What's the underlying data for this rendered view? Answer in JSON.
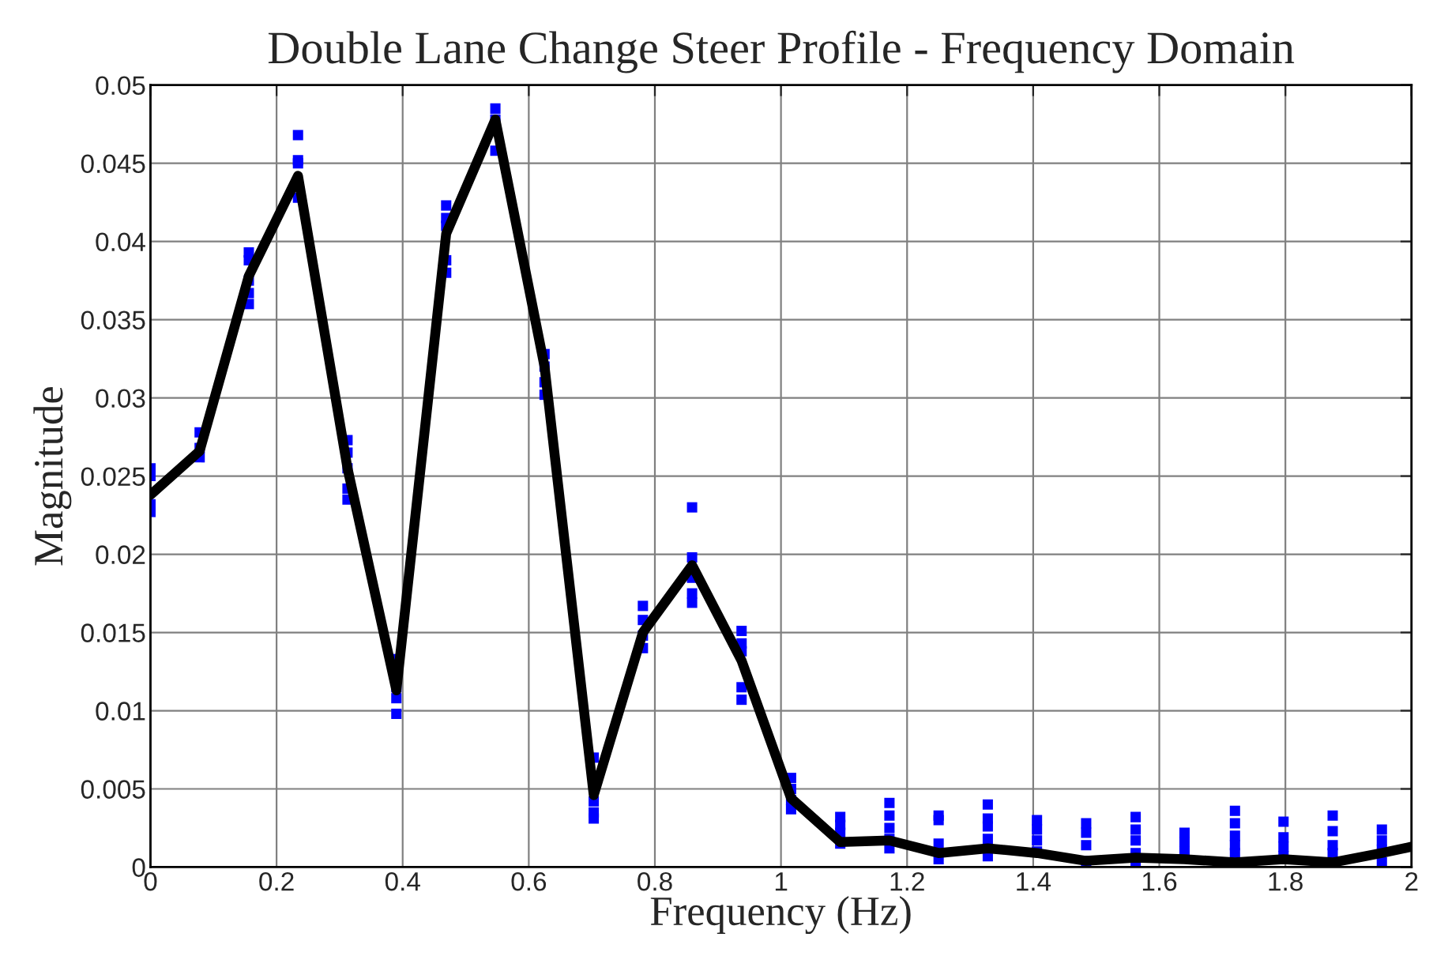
{
  "chart_data": {
    "type": "line",
    "title": "Double Lane Change Steer Profile - Frequency Domain",
    "xlabel": "Frequency (Hz)",
    "ylabel": "Magnitude",
    "xlim": [
      0,
      2
    ],
    "xticks": [
      0,
      0.2,
      0.4,
      0.6,
      0.8,
      1,
      1.2,
      1.4,
      1.6,
      1.8,
      2
    ],
    "ylim": [
      0,
      0.05
    ],
    "yticks": [
      0,
      0.005,
      0.01,
      0.015,
      0.02,
      0.025,
      0.03,
      0.035,
      0.04,
      0.045,
      0.05
    ],
    "grid": true,
    "series": [
      {
        "type": "scatter",
        "color": "#0000ff",
        "marker": "square",
        "x": [
          0,
          0,
          0,
          0,
          0.078,
          0.078,
          0.078,
          0.156,
          0.156,
          0.156,
          0.156,
          0.156,
          0.234,
          0.234,
          0.234,
          0.234,
          0.3125,
          0.3125,
          0.3125,
          0.3125,
          0.3125,
          0.39,
          0.39,
          0.39,
          0.39,
          0.469,
          0.469,
          0.469,
          0.469,
          0.469,
          0.547,
          0.547,
          0.547,
          0.625,
          0.625,
          0.625,
          0.625,
          0.703,
          0.703,
          0.703,
          0.703,
          0.781,
          0.781,
          0.781,
          0.781,
          0.859,
          0.859,
          0.859,
          0.859,
          0.859,
          0.9375,
          0.9375,
          0.9375,
          0.9375,
          0.9375,
          1.016,
          1.016,
          1.016,
          1.016,
          1.094,
          1.094,
          1.094,
          1.094,
          1.172,
          1.172,
          1.172,
          1.172,
          1.172,
          1.25,
          1.25,
          1.25,
          1.25,
          1.328,
          1.328,
          1.328,
          1.328,
          1.328,
          1.406,
          1.406,
          1.406,
          1.406,
          1.484,
          1.484,
          1.484,
          1.484,
          1.5625,
          1.5625,
          1.5625,
          1.5625,
          1.5625,
          1.64,
          1.64,
          1.64,
          1.72,
          1.72,
          1.72,
          1.72,
          1.72,
          1.797,
          1.797,
          1.797,
          1.797,
          1.875,
          1.875,
          1.875,
          1.875,
          1.953,
          1.953,
          1.953,
          1.953
        ],
        "values": [
          0.0255,
          0.025,
          0.0232,
          0.0227,
          0.0278,
          0.0268,
          0.0262,
          0.0393,
          0.0388,
          0.0375,
          0.0367,
          0.036,
          0.0468,
          0.0452,
          0.045,
          0.0428,
          0.0273,
          0.0265,
          0.0255,
          0.0242,
          0.0235,
          0.0133,
          0.0115,
          0.0108,
          0.0098,
          0.0423,
          0.0415,
          0.041,
          0.0388,
          0.038,
          0.0485,
          0.0478,
          0.0458,
          0.0328,
          0.032,
          0.031,
          0.0302,
          0.007,
          0.0042,
          0.0035,
          0.0031,
          0.0167,
          0.0158,
          0.0148,
          0.014,
          0.023,
          0.0198,
          0.0185,
          0.0175,
          0.0169,
          0.0151,
          0.0143,
          0.0138,
          0.0115,
          0.0107,
          0.0057,
          0.005,
          0.0043,
          0.0037,
          0.0032,
          0.0027,
          0.0022,
          0.0015,
          0.0041,
          0.0033,
          0.0025,
          0.0018,
          0.0012,
          0.0033,
          0.003,
          0.0015,
          0.0005,
          0.004,
          0.0031,
          0.0026,
          0.0018,
          0.0007,
          0.003,
          0.0024,
          0.0017,
          0.001,
          0.0028,
          0.0022,
          0.0014,
          0.0004,
          0.0032,
          0.0024,
          0.0017,
          0.0009,
          0.0002,
          0.0022,
          0.0016,
          0.001,
          0.0036,
          0.0028,
          0.002,
          0.0014,
          0.0009,
          0.0029,
          0.0019,
          0.0013,
          0.0007,
          0.0033,
          0.0023,
          0.0014,
          0.0009,
          0.0024,
          0.0017,
          0.0011,
          0.0003
        ]
      },
      {
        "color": "#000000",
        "line_style": "solid",
        "x": [
          0,
          0.078,
          0.156,
          0.234,
          0.3125,
          0.39,
          0.469,
          0.547,
          0.625,
          0.703,
          0.781,
          0.859,
          0.9375,
          1.016,
          1.094,
          1.172,
          1.25,
          1.328,
          1.406,
          1.484,
          1.5625,
          1.64,
          1.72,
          1.797,
          1.875,
          1.953,
          2
        ],
        "values": [
          0.0238,
          0.0266,
          0.0378,
          0.0442,
          0.0255,
          0.0113,
          0.0405,
          0.0478,
          0.032,
          0.0046,
          0.015,
          0.0193,
          0.0132,
          0.0044,
          0.0016,
          0.0017,
          0.0009,
          0.0012,
          0.0009,
          0.0004,
          0.0006,
          0.0005,
          0.0003,
          0.0005,
          0.0003,
          0.0009,
          0.0013
        ]
      }
    ]
  }
}
